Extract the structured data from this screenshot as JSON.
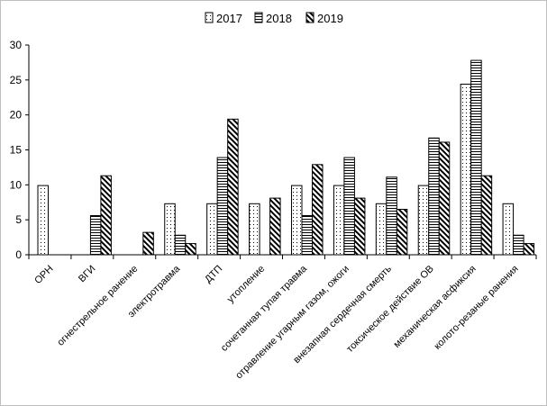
{
  "chart_data": {
    "type": "bar",
    "title": "",
    "xlabel": "",
    "ylabel": "",
    "ylim": [
      0,
      30
    ],
    "yticks": [
      0,
      5,
      10,
      15,
      20,
      25,
      30
    ],
    "grid": false,
    "legend": "top-center",
    "categories": [
      "ОРН",
      "ВГИ",
      "огнестрельное ранение",
      "электротравма",
      "ДТП",
      "утопление",
      "сочетанная тупая травма",
      "отравление угарным газом, ожоги",
      "внезапная сердечная смерть",
      "токсическое действие ОВ",
      "механическая асфиксия",
      "колото-резаные ранения"
    ],
    "series": [
      {
        "name": "2017",
        "pattern": "dots",
        "values": [
          9.9,
          0,
          0,
          7.3,
          7.3,
          7.3,
          9.9,
          9.9,
          7.3,
          9.9,
          24.4,
          7.3
        ]
      },
      {
        "name": "2018",
        "pattern": "hlines",
        "values": [
          0,
          5.6,
          0,
          2.8,
          13.9,
          0,
          5.6,
          13.9,
          11.1,
          16.7,
          27.8,
          2.8
        ]
      },
      {
        "name": "2019",
        "pattern": "diagonal",
        "values": [
          0,
          11.3,
          3.2,
          1.6,
          19.4,
          8.1,
          12.9,
          8.1,
          6.5,
          16.1,
          11.3,
          1.6
        ]
      }
    ]
  }
}
